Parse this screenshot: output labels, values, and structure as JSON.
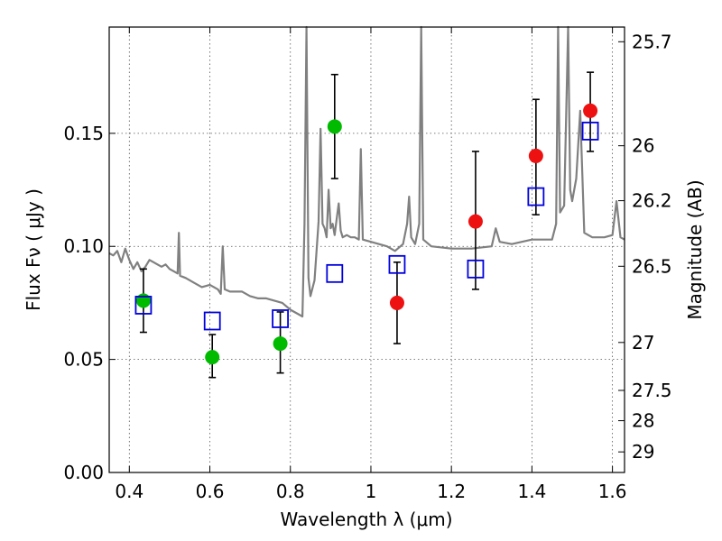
{
  "chart_data": {
    "type": "scatter",
    "title": "",
    "xlabel": "Wavelength  λ (μm)",
    "ylabel": "Flux  Fν  ( μJy )",
    "ylabel_right": "Magnitude (AB)",
    "xlim": [
      0.35,
      1.63
    ],
    "ylim": [
      0.0,
      0.197
    ],
    "grid": true,
    "x_ticks": [
      0.4,
      0.6,
      0.8,
      1.0,
      1.2,
      1.4,
      1.6
    ],
    "x_tick_labels": [
      "0.4",
      "0.6",
      "0.8",
      "1",
      "1.2",
      "1.4",
      "1.6"
    ],
    "y_ticks": [
      0.0,
      0.05,
      0.1,
      0.15
    ],
    "y_tick_labels": [
      "0.00",
      "0.05",
      "0.10",
      "0.15"
    ],
    "right_ticks": [
      {
        "mag_label": "25.7",
        "flux": 0.1905
      },
      {
        "mag_label": "26",
        "flux": 0.1445
      },
      {
        "mag_label": "26.2",
        "flux": 0.1202
      },
      {
        "mag_label": "26.5",
        "flux": 0.0912
      },
      {
        "mag_label": "27",
        "flux": 0.0575
      },
      {
        "mag_label": "27.5",
        "flux": 0.0363
      },
      {
        "mag_label": "28",
        "flux": 0.0229
      },
      {
        "mag_label": "29",
        "flux": 0.0091
      }
    ],
    "series": [
      {
        "marker": "circle",
        "color": "#00bb00",
        "points": [
          {
            "x": 0.435,
            "y": 0.076,
            "err_low": 0.062,
            "err_high": 0.09
          },
          {
            "x": 0.606,
            "y": 0.051,
            "err_low": 0.042,
            "err_high": 0.061
          },
          {
            "x": 0.775,
            "y": 0.057,
            "err_low": 0.044,
            "err_high": 0.071
          },
          {
            "x": 0.91,
            "y": 0.153,
            "err_low": 0.13,
            "err_high": 0.176
          }
        ]
      },
      {
        "marker": "circle",
        "color": "#ee1111",
        "points": [
          {
            "x": 1.065,
            "y": 0.075,
            "err_low": 0.057,
            "err_high": 0.093
          },
          {
            "x": 1.26,
            "y": 0.111,
            "err_low": 0.081,
            "err_high": 0.142
          },
          {
            "x": 1.41,
            "y": 0.14,
            "err_low": 0.114,
            "err_high": 0.165
          },
          {
            "x": 1.545,
            "y": 0.16,
            "err_low": 0.142,
            "err_high": 0.177
          }
        ]
      },
      {
        "marker": "square-open",
        "color": "#0000dd",
        "points": [
          {
            "x": 0.435,
            "y": 0.074
          },
          {
            "x": 0.606,
            "y": 0.067
          },
          {
            "x": 0.775,
            "y": 0.068
          },
          {
            "x": 0.91,
            "y": 0.088
          },
          {
            "x": 1.065,
            "y": 0.092
          },
          {
            "x": 1.26,
            "y": 0.09
          },
          {
            "x": 1.41,
            "y": 0.122
          },
          {
            "x": 1.545,
            "y": 0.151
          }
        ]
      }
    ],
    "model_spectrum": {
      "color": "#808080",
      "points": [
        [
          0.35,
          0.097
        ],
        [
          0.36,
          0.096
        ],
        [
          0.37,
          0.098
        ],
        [
          0.38,
          0.093
        ],
        [
          0.39,
          0.099
        ],
        [
          0.4,
          0.094
        ],
        [
          0.41,
          0.09
        ],
        [
          0.42,
          0.093
        ],
        [
          0.43,
          0.089
        ],
        [
          0.44,
          0.091
        ],
        [
          0.45,
          0.094
        ],
        [
          0.46,
          0.093
        ],
        [
          0.47,
          0.092
        ],
        [
          0.48,
          0.091
        ],
        [
          0.49,
          0.092
        ],
        [
          0.5,
          0.09
        ],
        [
          0.51,
          0.089
        ],
        [
          0.52,
          0.088
        ],
        [
          0.523,
          0.106
        ],
        [
          0.526,
          0.087
        ],
        [
          0.54,
          0.086
        ],
        [
          0.56,
          0.084
        ],
        [
          0.58,
          0.082
        ],
        [
          0.6,
          0.083
        ],
        [
          0.61,
          0.082
        ],
        [
          0.62,
          0.081
        ],
        [
          0.627,
          0.079
        ],
        [
          0.632,
          0.1
        ],
        [
          0.637,
          0.081
        ],
        [
          0.65,
          0.08
        ],
        [
          0.68,
          0.08
        ],
        [
          0.7,
          0.078
        ],
        [
          0.72,
          0.077
        ],
        [
          0.74,
          0.077
        ],
        [
          0.76,
          0.076
        ],
        [
          0.78,
          0.075
        ],
        [
          0.8,
          0.072
        ],
        [
          0.81,
          0.071
        ],
        [
          0.82,
          0.07
        ],
        [
          0.83,
          0.069
        ],
        [
          0.835,
          0.11
        ],
        [
          0.84,
          0.197
        ],
        [
          0.845,
          0.086
        ],
        [
          0.85,
          0.078
        ],
        [
          0.86,
          0.085
        ],
        [
          0.87,
          0.111
        ],
        [
          0.875,
          0.152
        ],
        [
          0.88,
          0.11
        ],
        [
          0.885,
          0.108
        ],
        [
          0.89,
          0.104
        ],
        [
          0.895,
          0.125
        ],
        [
          0.9,
          0.108
        ],
        [
          0.905,
          0.11
        ],
        [
          0.91,
          0.105
        ],
        [
          0.915,
          0.112
        ],
        [
          0.92,
          0.119
        ],
        [
          0.925,
          0.107
        ],
        [
          0.93,
          0.104
        ],
        [
          0.94,
          0.105
        ],
        [
          0.95,
          0.104
        ],
        [
          0.96,
          0.104
        ],
        [
          0.97,
          0.103
        ],
        [
          0.975,
          0.143
        ],
        [
          0.98,
          0.103
        ],
        [
          1.0,
          0.102
        ],
        [
          1.02,
          0.101
        ],
        [
          1.04,
          0.1
        ],
        [
          1.06,
          0.098
        ],
        [
          1.08,
          0.101
        ],
        [
          1.09,
          0.11
        ],
        [
          1.095,
          0.122
        ],
        [
          1.1,
          0.104
        ],
        [
          1.11,
          0.101
        ],
        [
          1.12,
          0.11
        ],
        [
          1.125,
          0.197
        ],
        [
          1.13,
          0.103
        ],
        [
          1.15,
          0.1
        ],
        [
          1.2,
          0.099
        ],
        [
          1.25,
          0.099
        ],
        [
          1.3,
          0.1
        ],
        [
          1.31,
          0.108
        ],
        [
          1.32,
          0.102
        ],
        [
          1.35,
          0.101
        ],
        [
          1.4,
          0.103
        ],
        [
          1.45,
          0.103
        ],
        [
          1.46,
          0.11
        ],
        [
          1.465,
          0.197
        ],
        [
          1.47,
          0.115
        ],
        [
          1.48,
          0.118
        ],
        [
          1.49,
          0.197
        ],
        [
          1.495,
          0.125
        ],
        [
          1.5,
          0.12
        ],
        [
          1.51,
          0.13
        ],
        [
          1.52,
          0.16
        ],
        [
          1.53,
          0.106
        ],
        [
          1.55,
          0.104
        ],
        [
          1.58,
          0.104
        ],
        [
          1.6,
          0.105
        ],
        [
          1.61,
          0.12
        ],
        [
          1.62,
          0.104
        ],
        [
          1.63,
          0.103
        ]
      ]
    }
  }
}
